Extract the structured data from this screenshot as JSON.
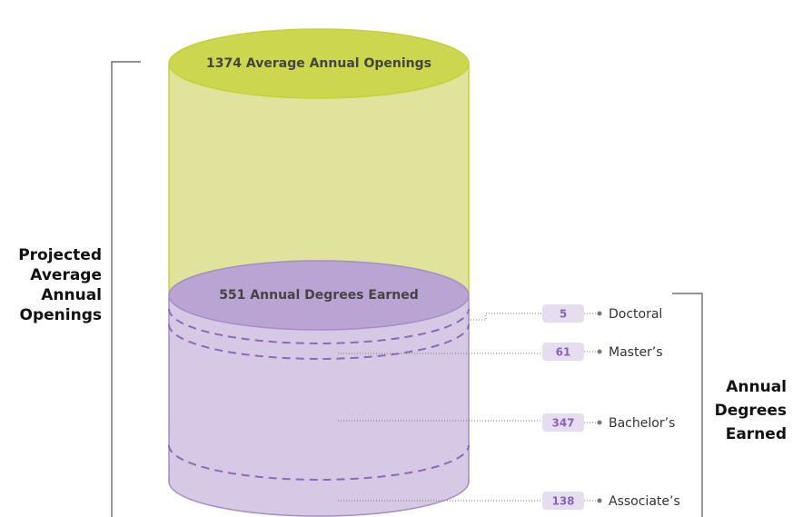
{
  "openings": {
    "value": 1374,
    "label": "Average Annual Openings"
  },
  "degrees": {
    "value": 551,
    "label": "Annual Degrees Earned"
  },
  "levels": [
    {
      "value": 5,
      "label": "Doctoral"
    },
    {
      "value": 61,
      "label": "Master’s"
    },
    {
      "value": 347,
      "label": "Bachelor’s"
    },
    {
      "value": 138,
      "label": "Associate’s"
    }
  ],
  "left_label": [
    "Projected",
    "Average",
    "Annual",
    "Openings"
  ],
  "right_label": [
    "Annual",
    "Degrees",
    "Earned"
  ]
}
